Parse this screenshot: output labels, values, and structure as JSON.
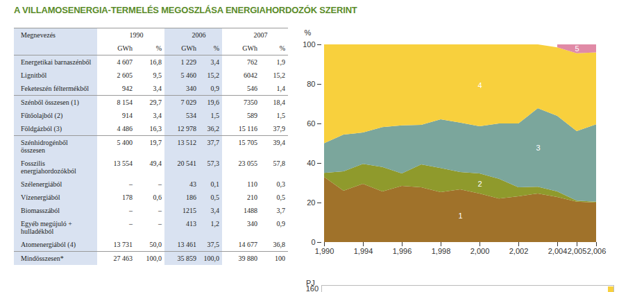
{
  "title": "A VILLAMOSENERGIA-TERMELÉS MEGOSZLÁSA ENERGIAHORDOZÓK SZERINT",
  "table": {
    "header": {
      "first": "Megnevezés",
      "years": [
        "1990",
        "2006",
        "2007"
      ],
      "units": [
        "GWh",
        "%"
      ]
    },
    "row_groups": [
      [
        [
          "Energetikai barnaszénből",
          "4 607",
          "16,8",
          "1 229",
          "3,4",
          "762",
          "1,9"
        ],
        [
          "Lignitből",
          "2 605",
          "9,5",
          "5 460",
          "15,2",
          "6042",
          "15,2"
        ],
        [
          "Feketeszén féltermékből",
          "942",
          "3,4",
          "340",
          "0,9",
          "546",
          "1,4"
        ]
      ],
      [
        [
          "Szénből összesen (1)",
          "8 154",
          "29,7",
          "7 029",
          "19,6",
          "7350",
          "18,4"
        ],
        [
          "Fűtőolajból (2)",
          "914",
          "3,4",
          "534",
          "1,5",
          "589",
          "1,5"
        ],
        [
          "Földgázból (3)",
          "4 486",
          "16,3",
          "12 978",
          "36,2",
          "15 116",
          "37,9"
        ]
      ],
      [
        [
          "Szénhidrogénből összesen",
          "5 400",
          "19,7",
          "13 512",
          "37,7",
          "15 705",
          "39,4"
        ],
        [
          "Fosszilis energiahordozókból",
          "13 554",
          "49,4",
          "20 541",
          "57,3",
          "23 055",
          "57,8"
        ],
        [
          "Szélenergiából",
          "–",
          "–",
          "43",
          "0,1",
          "110",
          "0,3"
        ],
        [
          "Vízenergiából",
          "178",
          "0,6",
          "186",
          "0,5",
          "210",
          "0,5"
        ],
        [
          "Biomasszából",
          "–",
          "–",
          "1215",
          "3,4",
          "1488",
          "3,7"
        ],
        [
          "Egyéb megújuló + hulladékból",
          "–",
          "–",
          "413",
          "1,2",
          "340",
          "0,9"
        ],
        [
          "Atomenergiából (4)",
          "13 731",
          "50,0",
          "13 461",
          "37,5",
          "14 677",
          "36,8"
        ]
      ],
      [
        [
          "Mindösszesen*",
          "27 463",
          "100,0",
          "35 859",
          "100,0",
          "39 880",
          "100"
        ]
      ]
    ]
  },
  "chart_data": {
    "type": "area",
    "stacked": true,
    "categories": [
      1990,
      null,
      1994,
      null,
      1996,
      null,
      1998,
      null,
      2000,
      null,
      2002,
      null,
      2004,
      2005,
      2006
    ],
    "ylim": [
      0,
      100
    ],
    "yticks": [
      0,
      20,
      40,
      60,
      80,
      100
    ],
    "ylabel": "%",
    "data_labels": false,
    "series": [
      {
        "name": "1",
        "color": "#a0722a",
        "values": [
          33,
          26,
          29.5,
          25.6,
          28.4,
          27.7,
          25.3,
          26.7,
          24.6,
          22,
          23.2,
          24.6,
          22.8,
          20.4,
          20
        ]
      },
      {
        "name": "2",
        "color": "#8f9a2c",
        "values": [
          2,
          9.8,
          10.1,
          12.4,
          6.3,
          11.6,
          12.2,
          8.7,
          10.1,
          10,
          4.5,
          3.4,
          2.8,
          0.6,
          0.4
        ]
      },
      {
        "name": "3",
        "color": "#7ba69c",
        "values": [
          15,
          18.6,
          15.8,
          20.2,
          24.3,
          20,
          24.6,
          25,
          23.9,
          28,
          32.3,
          39.7,
          38.3,
          35.1,
          39.2
        ]
      },
      {
        "name": "4",
        "color": "#f8d03d",
        "values": [
          50,
          45.6,
          44.6,
          41.8,
          41,
          40.7,
          37.9,
          39.6,
          41.4,
          40,
          40,
          32.3,
          34.6,
          39.4,
          36.4
        ]
      },
      {
        "name": "5",
        "color": "#e08aa6",
        "values": [
          null,
          null,
          null,
          null,
          null,
          null,
          null,
          null,
          null,
          null,
          null,
          null,
          1.5,
          4.5,
          4
        ]
      }
    ]
  },
  "fragment": {
    "ylabel": "PJ",
    "yticks": [
      160
    ]
  }
}
